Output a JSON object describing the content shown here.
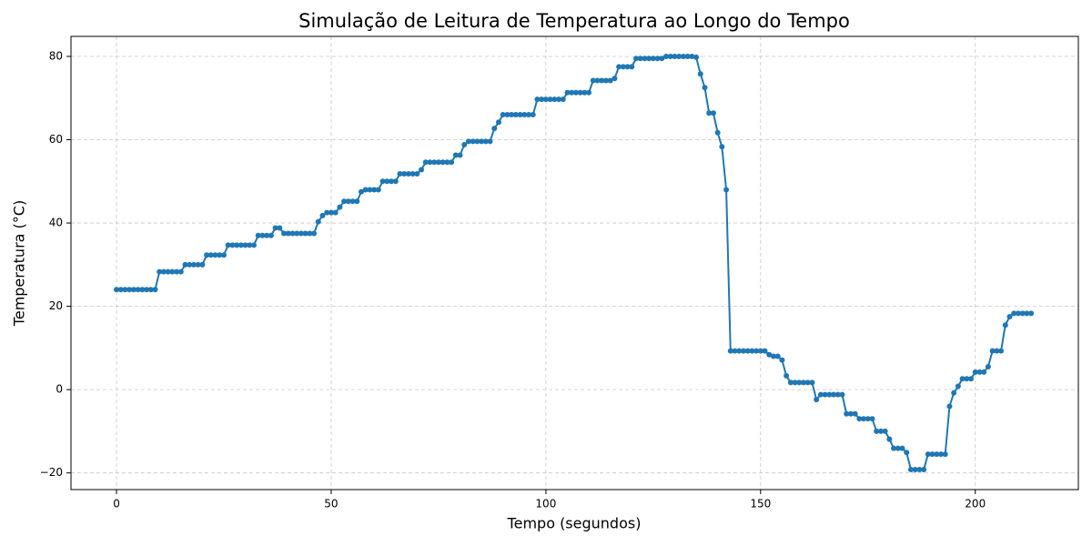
{
  "chart_data": {
    "type": "line",
    "title": "Simulação de Leitura de Temperatura ao Longo do Tempo",
    "x_label": "Tempo (segundos)",
    "y_label": "Temperatura (°C)",
    "color": "#1f77b4",
    "grid": true,
    "xlim": [
      -10.6,
      224
    ],
    "ylim": [
      -24,
      84.8
    ],
    "xticks": [
      0,
      50,
      100,
      150,
      200
    ],
    "yticks": [
      {
        "value": -20,
        "label": "−20"
      },
      0,
      20,
      40,
      60,
      80
    ],
    "x": [
      0,
      1,
      2,
      3,
      4,
      5,
      6,
      7,
      8,
      9,
      10,
      11,
      12,
      13,
      14,
      15,
      16,
      17,
      18,
      19,
      20,
      21,
      22,
      23,
      24,
      25,
      26,
      27,
      28,
      29,
      30,
      31,
      32,
      33,
      34,
      35,
      36,
      37,
      38,
      39,
      40,
      41,
      42,
      43,
      44,
      45,
      46,
      47,
      48,
      49,
      50,
      51,
      52,
      53,
      54,
      55,
      56,
      57,
      58,
      59,
      60,
      61,
      62,
      63,
      64,
      65,
      66,
      67,
      68,
      69,
      70,
      71,
      72,
      73,
      74,
      75,
      76,
      77,
      78,
      79,
      80,
      81,
      82,
      83,
      84,
      85,
      86,
      87,
      88,
      89,
      90,
      91,
      92,
      93,
      94,
      95,
      96,
      97,
      98,
      99,
      100,
      101,
      102,
      103,
      104,
      105,
      106,
      107,
      108,
      109,
      110,
      111,
      112,
      113,
      114,
      115,
      116,
      117,
      118,
      119,
      120,
      121,
      122,
      123,
      124,
      125,
      126,
      127,
      128,
      129,
      130,
      131,
      132,
      133,
      134,
      135,
      136,
      137,
      138,
      139,
      140,
      141,
      142,
      143,
      144,
      145,
      146,
      147,
      148,
      149,
      150,
      151,
      152,
      153,
      154,
      155,
      156,
      157,
      158,
      159,
      160,
      161,
      162,
      163,
      164,
      165,
      166,
      167,
      168,
      169,
      170,
      171,
      172,
      173,
      174,
      175,
      176,
      177,
      178,
      179,
      180,
      181,
      182,
      183,
      184,
      185,
      186,
      187,
      188,
      189,
      190,
      191,
      192,
      193,
      194,
      195,
      196,
      197,
      198,
      199,
      200,
      201,
      202,
      203,
      204,
      205,
      206,
      207,
      208,
      209,
      210,
      211,
      212,
      213
    ],
    "values": [
      24,
      24,
      24,
      24,
      24,
      24,
      24,
      24,
      24,
      24,
      28.3,
      28.3,
      28.3,
      28.3,
      28.3,
      28.3,
      30,
      30,
      30,
      30,
      30,
      32.3,
      32.3,
      32.3,
      32.3,
      32.3,
      34.7,
      34.7,
      34.7,
      34.7,
      34.7,
      34.7,
      34.7,
      37,
      37,
      37,
      37,
      38.8,
      38.8,
      37.5,
      37.5,
      37.5,
      37.5,
      37.5,
      37.5,
      37.5,
      37.5,
      40.3,
      41.8,
      42.5,
      42.5,
      42.5,
      43.8,
      45.2,
      45.2,
      45.2,
      45.2,
      47.5,
      48,
      48,
      48,
      48,
      50,
      50,
      50,
      50,
      51.8,
      51.8,
      51.8,
      51.8,
      51.8,
      52.8,
      54.6,
      54.6,
      54.6,
      54.6,
      54.6,
      54.6,
      54.6,
      56.3,
      56.3,
      58.8,
      59.6,
      59.6,
      59.6,
      59.6,
      59.6,
      59.6,
      62.7,
      64.2,
      66,
      66,
      66,
      66,
      66,
      66,
      66,
      66,
      69.7,
      69.7,
      69.7,
      69.7,
      69.7,
      69.7,
      69.7,
      71.3,
      71.3,
      71.3,
      71.3,
      71.3,
      71.3,
      74.2,
      74.2,
      74.2,
      74.2,
      74.2,
      74.7,
      77.5,
      77.5,
      77.5,
      77.5,
      79.5,
      79.5,
      79.5,
      79.5,
      79.5,
      79.5,
      79.5,
      80,
      80,
      80,
      80,
      80,
      80,
      80,
      79.8,
      75.8,
      72.5,
      66.4,
      66.4,
      61.7,
      58.3,
      48,
      9.3,
      9.3,
      9.3,
      9.3,
      9.3,
      9.3,
      9.3,
      9.3,
      9.3,
      8.4,
      8,
      8,
      7.1,
      3.3,
      1.7,
      1.7,
      1.7,
      1.7,
      1.7,
      1.7,
      -2.4,
      -1.2,
      -1.2,
      -1.2,
      -1.2,
      -1.2,
      -1.2,
      -5.8,
      -5.8,
      -5.8,
      -7,
      -7,
      -7,
      -7,
      -10,
      -10,
      -10,
      -11.9,
      -14.1,
      -14.1,
      -14.1,
      -15.1,
      -19.2,
      -19.2,
      -19.2,
      -19.2,
      -15.5,
      -15.5,
      -15.5,
      -15.5,
      -15.5,
      -4,
      -0.8,
      0.8,
      2.6,
      2.6,
      2.6,
      4.2,
      4.2,
      4.2,
      5.5,
      9.3,
      9.3,
      9.3,
      15.5,
      17.5,
      18.3,
      18.3,
      18.3,
      18.3,
      18.3
    ]
  }
}
